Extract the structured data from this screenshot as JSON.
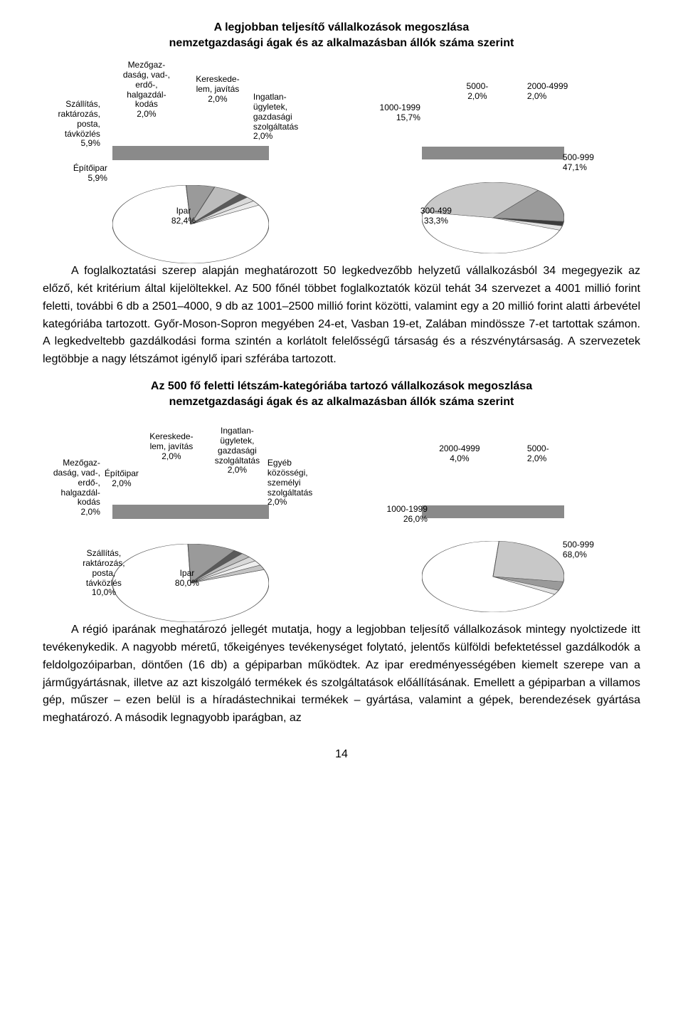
{
  "section1": {
    "title_line1": "A legjobban teljesítő vállalkozások megoszlása",
    "title_line2": "nemzetgazdasági ágak és az alkalmazásban állók száma szerint",
    "left_chart": {
      "type": "pie",
      "diameter_w": 220,
      "diameter_h": 110,
      "depth": 20,
      "colors": {
        "ipar": "#ffffff",
        "szallitas": "#9a9a9a",
        "epitoipar": "#bcbcbc",
        "mezogazd": "#5a5a5a",
        "keresk": "#d9d9d9",
        "ingatlan": "#e9e9e9"
      },
      "slices": [
        {
          "key": "ipar",
          "value": 82.4,
          "label_lines": [
            "Ipar",
            "82,4%"
          ]
        },
        {
          "key": "szallitas",
          "value": 5.9,
          "label_lines": [
            "Szállítás,",
            "raktározás,",
            "posta,",
            "távközlés",
            "5,9%"
          ]
        },
        {
          "key": "epitoipar",
          "value": 5.9,
          "label_lines": [
            "Építőipar",
            "5,9%"
          ]
        },
        {
          "key": "mezogazd",
          "value": 2.0,
          "label_lines": [
            "Mezőgaz-",
            "daság, vad-,",
            "erdő-,",
            "halgazdál-",
            "kodás",
            "2,0%"
          ]
        },
        {
          "key": "keresk",
          "value": 2.0,
          "label_lines": [
            "Kereskede-",
            "lem, javítás",
            "2,0%"
          ]
        },
        {
          "key": "ingatlan",
          "value": 2.0,
          "label_lines": [
            "Ingatlan-",
            "ügyletek,",
            "gazdasági",
            "szolgáltatás",
            "2,0%"
          ]
        }
      ]
    },
    "right_chart": {
      "type": "pie",
      "diameter_w": 200,
      "diameter_h": 100,
      "depth": 18,
      "colors": {
        "500-999": "#ffffff",
        "300-499": "#c8c8c8",
        "1000-1999": "#9a9a9a",
        "5000-": "#3b3b3b",
        "2000-4999": "#e2e2e2"
      },
      "slices": [
        {
          "key": "500-999",
          "value": 47.1,
          "label_lines": [
            "500-999",
            "47,1%"
          ]
        },
        {
          "key": "300-499",
          "value": 33.3,
          "label_lines": [
            "300-499",
            "33,3%"
          ]
        },
        {
          "key": "1000-1999",
          "value": 15.7,
          "label_lines": [
            "1000-1999",
            "15,7%"
          ]
        },
        {
          "key": "5000-",
          "value": 2.0,
          "label_lines": [
            "5000-",
            "2,0%"
          ]
        },
        {
          "key": "2000-4999",
          "value": 2.0,
          "label_lines": [
            "2000-4999",
            "2,0%"
          ]
        }
      ]
    }
  },
  "para1": "A foglalkoztatási szerep alapján meghatározott 50 legkedvezőbb helyzetű vállalkozásból 34 megegyezik az előző, két kritérium által kijelöltekkel. Az 500 főnél többet foglalkoztatók közül tehát 34 szervezet a 4001 millió forint feletti, további 6 db a 2501–4000, 9 db az 1001–2500 millió forint közötti, valamint egy a 20 millió forint alatti árbevétel kategóriába tartozott. Győr-Moson-Sopron megyében 24-et, Vasban 19-et, Zalában mindössze 7-et tartottak számon. A legkedveltebb gazdálkodási forma szintén a korlátolt felelősségű társaság és a részvénytársaság. A szervezetek legtöbbje a nagy létszámot igénylő ipari szférába tartozott.",
  "section2": {
    "title_line1": "Az 500 fő feletti létszám-kategóriába tartozó vállalkozások megoszlása",
    "title_line2": "nemzetgazdasági ágak és az alkalmazásban állók száma szerint",
    "left_chart": {
      "type": "pie",
      "diameter_w": 220,
      "diameter_h": 110,
      "depth": 20,
      "colors": {
        "ipar": "#ffffff",
        "szallitas": "#9a9a9a",
        "mezogazd": "#5a5a5a",
        "epitoipar": "#bcbcbc",
        "keresk": "#d9d9d9",
        "ingatlan": "#efefef",
        "egyeb": "#c4c4c4"
      },
      "slices": [
        {
          "key": "ipar",
          "value": 80.0,
          "label_lines": [
            "Ipar",
            "80,0%"
          ]
        },
        {
          "key": "szallitas",
          "value": 10.0,
          "label_lines": [
            "Szállítás,",
            "raktározás,",
            "posta,",
            "távközlés",
            "10,0%"
          ]
        },
        {
          "key": "mezogazd",
          "value": 2.0,
          "label_lines": [
            "Mezőgaz-",
            "daság, vad-,",
            "erdő-,",
            "halgazdál-",
            "kodás",
            "2,0%"
          ]
        },
        {
          "key": "epitoipar",
          "value": 2.0,
          "label_lines": [
            "Építőipar",
            "2,0%"
          ]
        },
        {
          "key": "keresk",
          "value": 2.0,
          "label_lines": [
            "Kereskede-",
            "lem, javítás",
            "2,0%"
          ]
        },
        {
          "key": "ingatlan",
          "value": 2.0,
          "label_lines": [
            "Ingatlan-",
            "ügyletek,",
            "gazdasági",
            "szolgáltatás",
            "2,0%"
          ]
        },
        {
          "key": "egyeb",
          "value": 2.0,
          "label_lines": [
            "Egyéb",
            "közösségi,",
            "személyi",
            "szolgáltatás",
            "2,0%"
          ]
        }
      ]
    },
    "right_chart": {
      "type": "pie",
      "diameter_w": 200,
      "diameter_h": 100,
      "depth": 18,
      "colors": {
        "500-999": "#ffffff",
        "1000-1999": "#c8c8c8",
        "2000-4999": "#9a9a9a",
        "5000-": "#e2e2e2"
      },
      "slices": [
        {
          "key": "500-999",
          "value": 68.0,
          "label_lines": [
            "500-999",
            "68,0%"
          ]
        },
        {
          "key": "1000-1999",
          "value": 26.0,
          "label_lines": [
            "1000-1999",
            "26,0%"
          ]
        },
        {
          "key": "2000-4999",
          "value": 4.0,
          "label_lines": [
            "2000-4999",
            "4,0%"
          ]
        },
        {
          "key": "5000-",
          "value": 2.0,
          "label_lines": [
            "5000-",
            "2,0%"
          ]
        }
      ]
    }
  },
  "para2": "A régió iparának meghatározó jellegét mutatja, hogy a legjobban teljesítő vállalkozások mintegy nyolctizede itt tevékenykedik. A nagyobb méretű, tőkeigényes tevékenységet folytató, jelentős külföldi befektetéssel gazdálkodók a feldolgozóiparban, döntően (16 db) a gépiparban működtek. Az ipar eredményességében kiemelt szerepe van a járműgyártásnak, illetve az azt kiszolgáló termékek és szolgáltatások előállításának. Emellett a gépiparban a villamos gép, műszer – ezen belül is a híradástechnikai termékek – gyártása, valamint a gépek, berendezések gyártása meghatározó. A második legnagyobb iparágban, az",
  "page_number": "14"
}
